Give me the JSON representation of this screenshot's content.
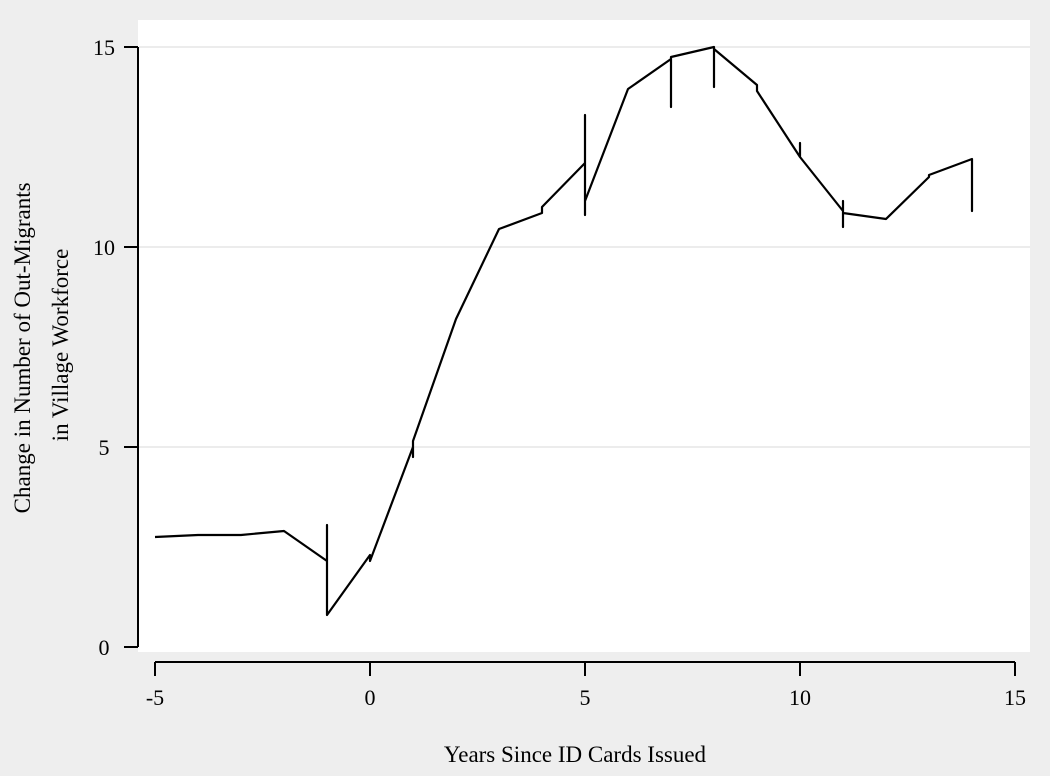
{
  "chart_data": {
    "type": "line",
    "title": "",
    "xlabel": "Years Since ID Cards Issued",
    "ylabel_lines": [
      "Change in Number of Out-Migrants",
      "in Village Workforce"
    ],
    "xlim": [
      -5,
      15
    ],
    "ylim": [
      0,
      15
    ],
    "x_ticks": [
      -5,
      0,
      5,
      10,
      15
    ],
    "x_tick_labels": [
      "-5",
      "0",
      "5",
      "10",
      "15"
    ],
    "y_ticks": [
      0,
      5,
      10,
      15
    ],
    "y_tick_labels": [
      "0",
      "5",
      "10",
      "15"
    ],
    "grid": "horizontal",
    "legend": "none",
    "colors": {
      "background": "#eeeeee",
      "plot_area": "#ffffff",
      "line": "#000000",
      "grid": "#e6e6e6"
    },
    "series": [
      {
        "points": [
          [
            -5,
            2.75
          ],
          [
            -4,
            2.8
          ],
          [
            -3,
            2.8
          ],
          [
            -2,
            2.9
          ],
          [
            -1,
            2.15
          ],
          [
            -1,
            3.05
          ],
          [
            -1,
            0.8
          ],
          [
            0,
            2.3
          ],
          [
            0,
            2.15
          ],
          [
            1,
            5.0
          ],
          [
            1,
            4.75
          ],
          [
            1,
            5.15
          ],
          [
            2,
            8.2
          ],
          [
            3,
            10.45
          ],
          [
            4,
            10.85
          ],
          [
            4,
            11.0
          ],
          [
            5,
            12.1
          ],
          [
            5,
            13.3
          ],
          [
            5,
            10.8
          ],
          [
            5,
            11.15
          ],
          [
            6,
            13.95
          ],
          [
            7,
            14.7
          ],
          [
            7,
            13.5
          ],
          [
            7,
            14.75
          ],
          [
            8,
            15.0
          ],
          [
            8,
            14.0
          ],
          [
            8,
            14.95
          ],
          [
            9,
            14.05
          ],
          [
            9,
            13.9
          ],
          [
            10,
            12.25
          ],
          [
            10,
            12.6
          ],
          [
            10,
            12.25
          ],
          [
            11,
            10.9
          ],
          [
            11,
            10.5
          ],
          [
            11,
            11.15
          ],
          [
            11,
            10.85
          ],
          [
            12,
            10.7
          ],
          [
            13,
            11.75
          ],
          [
            13,
            11.8
          ],
          [
            14,
            12.2
          ],
          [
            14,
            10.9
          ],
          [
            14,
            12.15
          ]
        ]
      }
    ]
  }
}
